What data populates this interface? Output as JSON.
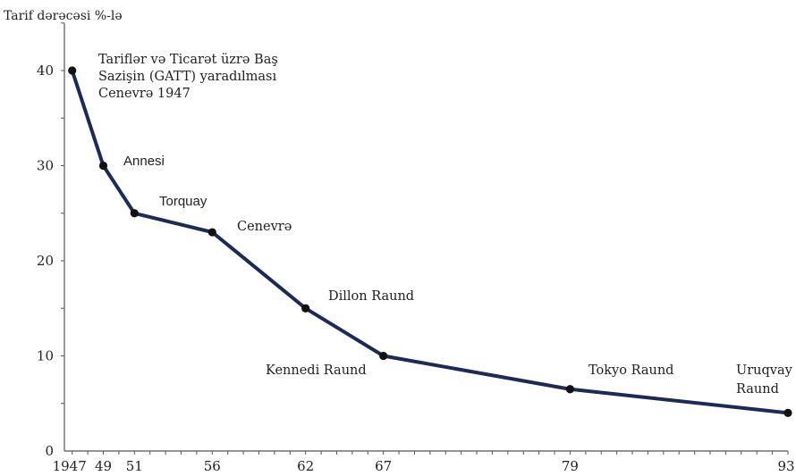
{
  "chart_data": {
    "type": "line",
    "ylabel": "Tarif dərəcəsi %-lə",
    "xlabel": "",
    "title": "",
    "ylim": [
      0,
      45
    ],
    "xlim": [
      1946.5,
      1993
    ],
    "y_ticks": [
      0,
      10,
      20,
      30,
      40
    ],
    "x_ticks": [
      {
        "value": 1947,
        "label": "1947"
      },
      {
        "value": 1949,
        "label": "49"
      },
      {
        "value": 1951,
        "label": "51"
      },
      {
        "value": 1956,
        "label": "56"
      },
      {
        "value": 1962,
        "label": "62"
      },
      {
        "value": 1967,
        "label": "67"
      },
      {
        "value": 1979,
        "label": "79"
      },
      {
        "value": 1993,
        "label": "93"
      }
    ],
    "grid": false,
    "legend": "none",
    "line_color": "#1b2a57",
    "series": [
      {
        "x": [
          1947,
          1949,
          1951,
          1956,
          1962,
          1967,
          1979,
          1993
        ],
        "values": [
          40,
          30,
          25,
          23,
          15,
          10,
          6.5,
          4
        ]
      }
    ],
    "annotations": [
      {
        "lines": [
          "Tariflər və Ticarət üzrə Baş",
          "Sazişin (GATT) yaradılması",
          "Cenevrə 1947"
        ],
        "font": "serif"
      },
      {
        "lines": [
          "Annesi"
        ],
        "font": "sans"
      },
      {
        "lines": [
          "Torquay"
        ],
        "font": "sans"
      },
      {
        "lines": [
          "Cenevrə"
        ],
        "font": "serif"
      },
      {
        "lines": [
          "Dillon Raund"
        ],
        "font": "serif"
      },
      {
        "lines": [
          "Kennedi Raund"
        ],
        "font": "serif"
      },
      {
        "lines": [
          "Tokyo Raund"
        ],
        "font": "serif"
      },
      {
        "lines": [
          "Uruqvay",
          "Raund"
        ],
        "font": "serif"
      }
    ]
  }
}
